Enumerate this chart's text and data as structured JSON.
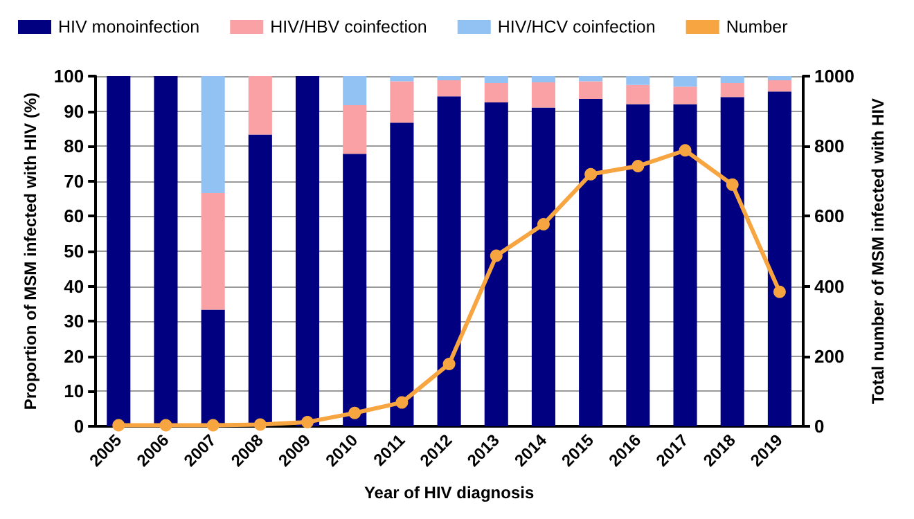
{
  "chart_data": {
    "type": "bar",
    "stacked": true,
    "xlabel": "Year of HIV diagnosis",
    "ylabel": "Proportion of MSM infected with HIV (%)",
    "y2label": "Total number of MSM infected with HIV",
    "categories": [
      "2005",
      "2006",
      "2007",
      "2008",
      "2009",
      "2010",
      "2011",
      "2012",
      "2013",
      "2014",
      "2015",
      "2016",
      "2017",
      "2018",
      "2019"
    ],
    "series": [
      {
        "name": "HIV monoinfection",
        "color": "#000080",
        "values": [
          100,
          100,
          33.3,
          83.3,
          100,
          77.8,
          86.7,
          94.2,
          92.5,
          91,
          93.5,
          92,
          92,
          94,
          95.6
        ]
      },
      {
        "name": "HIV/HBV coinfection",
        "color": "#f9a1a4",
        "values": [
          0,
          0,
          33.3,
          16.7,
          0,
          13.9,
          11.8,
          4.6,
          5.5,
          7.2,
          5,
          5.5,
          5,
          4,
          3.2
        ]
      },
      {
        "name": "HIV/HCV coinfection",
        "color": "#92c1f4",
        "values": [
          0,
          0,
          33.4,
          0,
          0,
          8.3,
          1.5,
          1.2,
          2,
          1.8,
          1.5,
          2.5,
          3,
          2,
          1.2
        ]
      },
      {
        "name": "Number",
        "type": "line",
        "axis": "y2",
        "color": "#f7a540",
        "values": [
          3,
          3,
          3,
          5,
          12,
          38,
          68,
          178,
          487,
          577,
          720,
          743,
          788,
          690,
          384
        ]
      }
    ],
    "ylim": [
      0,
      100
    ],
    "yticks": [
      0,
      10,
      20,
      30,
      40,
      50,
      60,
      70,
      80,
      90,
      100
    ],
    "y2lim": [
      0,
      1000
    ],
    "y2ticks": [
      0,
      200,
      400,
      600,
      800,
      1000
    ],
    "grid": "y",
    "legend": "top",
    "marker": "circle"
  }
}
